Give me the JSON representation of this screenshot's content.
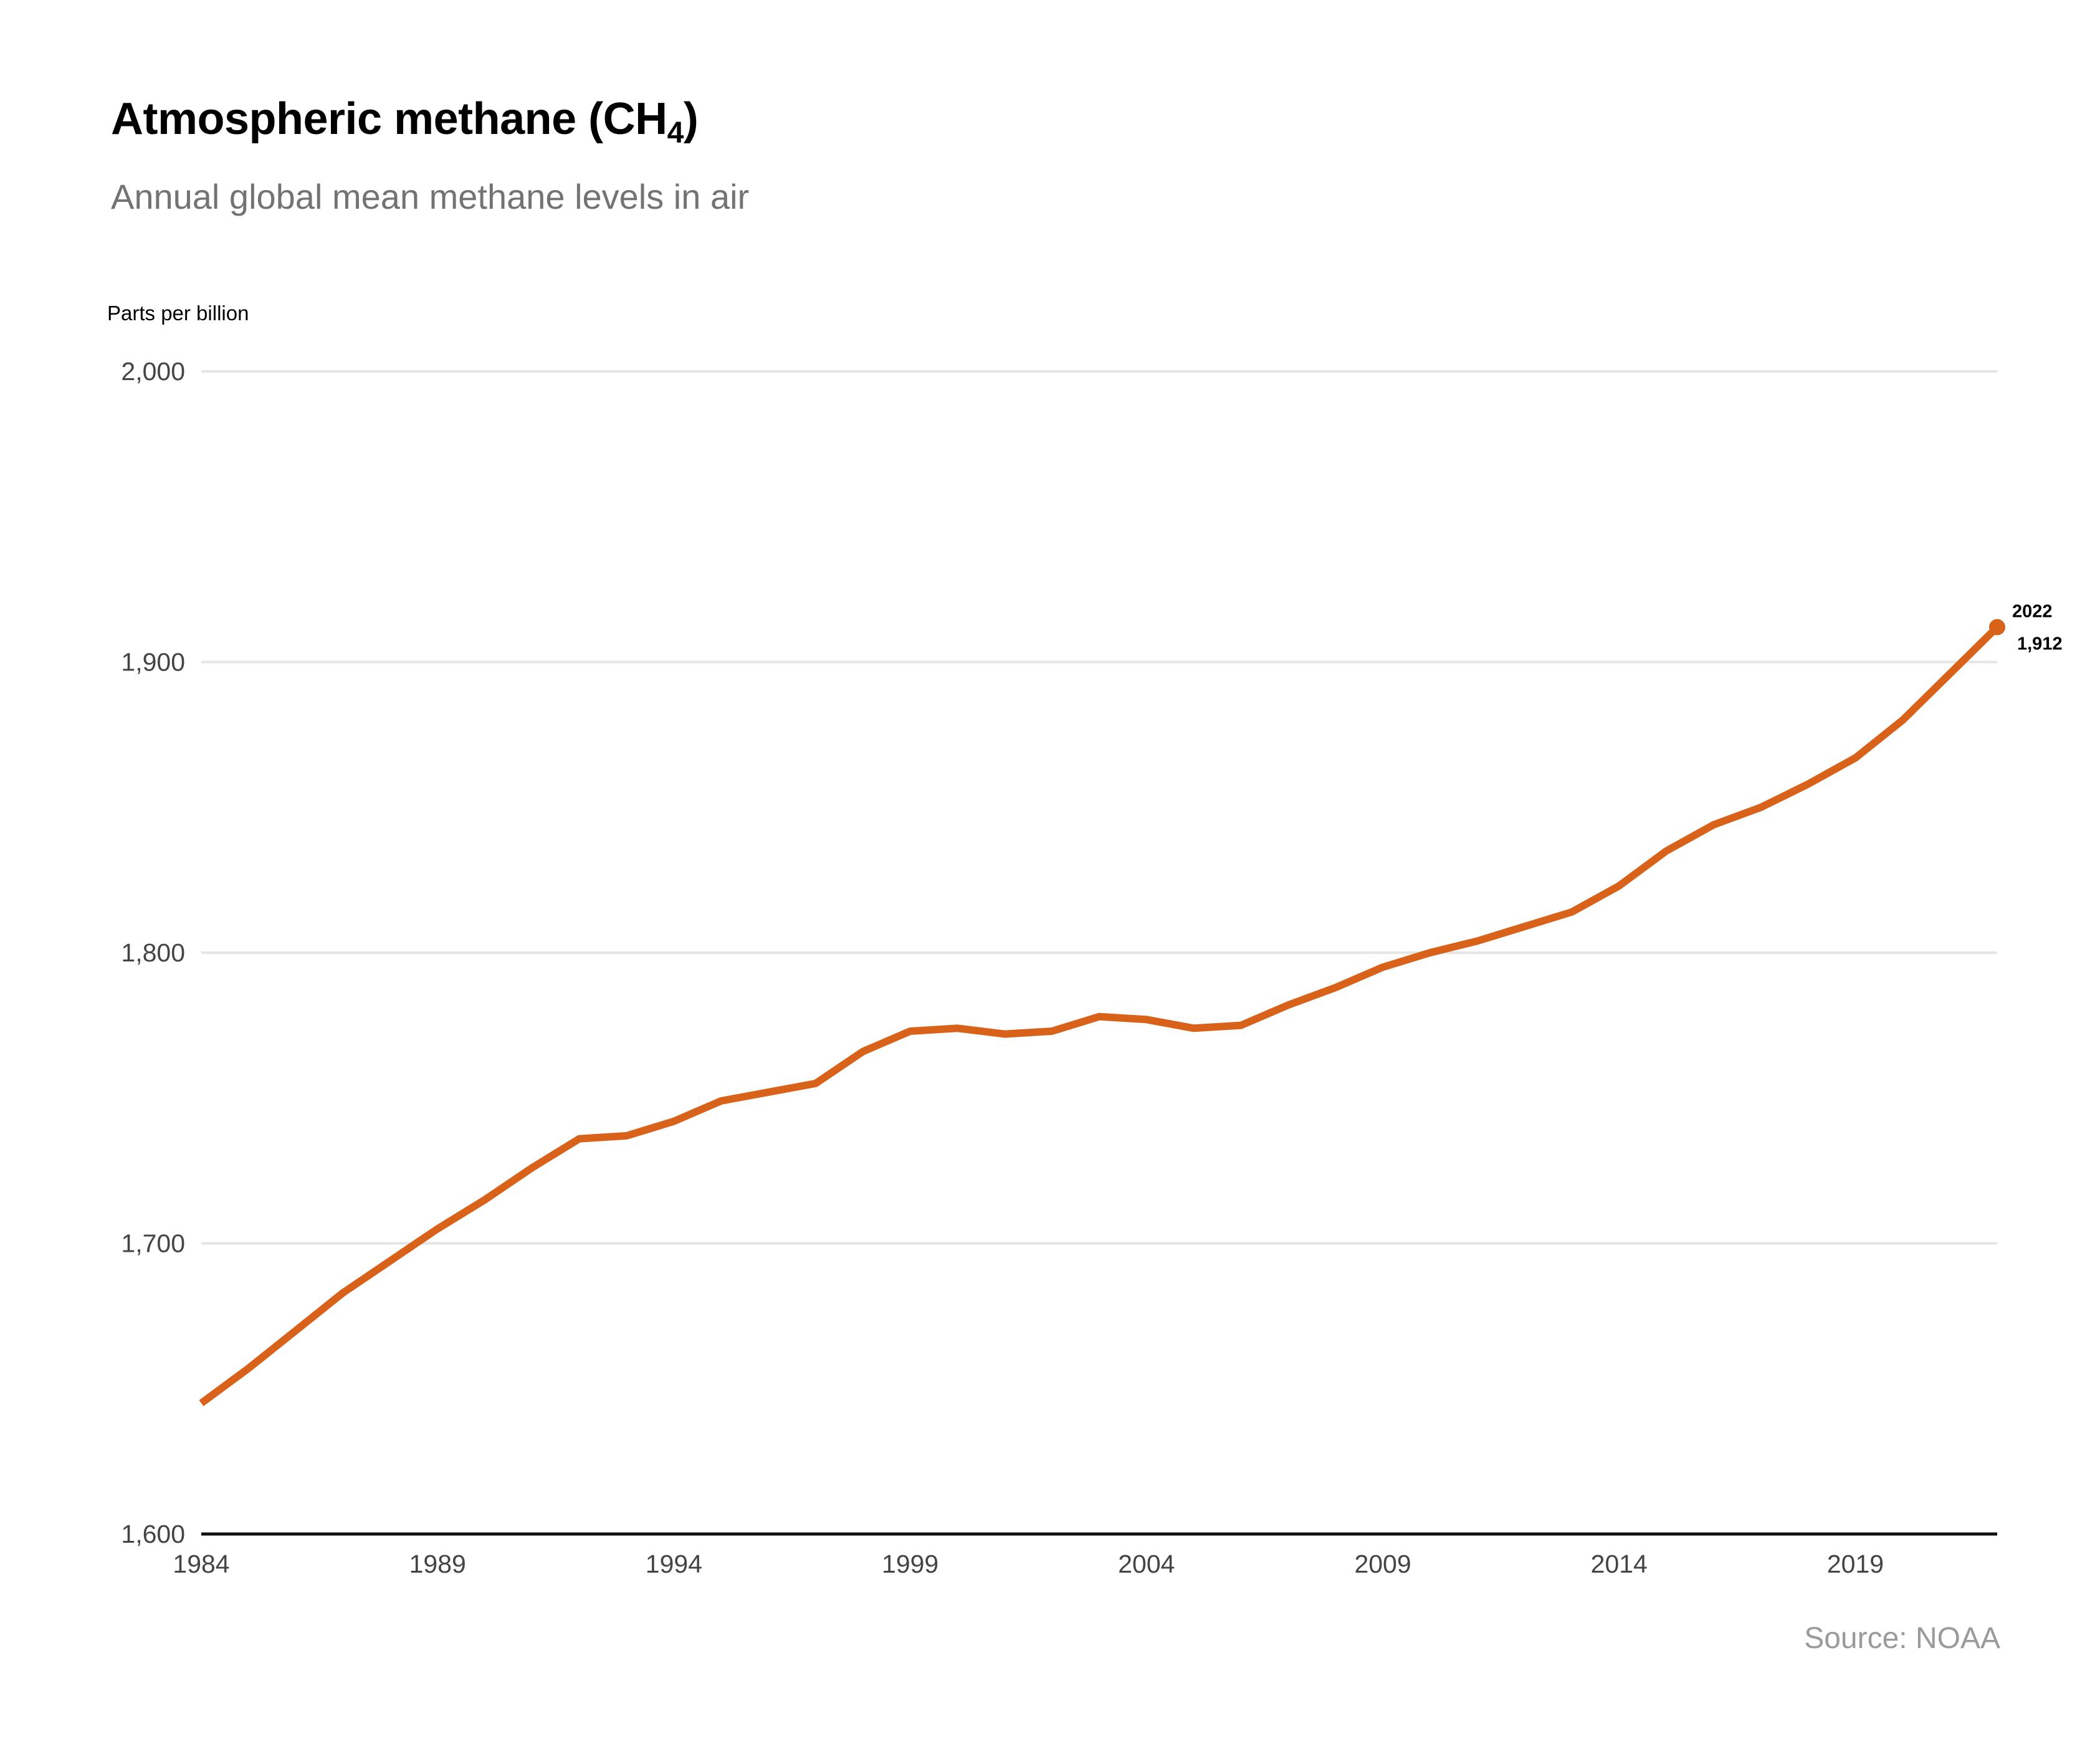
{
  "title": "Atmospheric methane (CH",
  "title_sub": "4",
  "title_close": ")",
  "subtitle": "Annual global mean methane levels in air",
  "source": "Source: NOAA",
  "chart_data": {
    "type": "line",
    "ylabel": "Parts per billion",
    "xlim": [
      1984,
      2022
    ],
    "ylim": [
      1600,
      2000
    ],
    "y_ticks": [
      {
        "value": 1600,
        "label": "1,600"
      },
      {
        "value": 1700,
        "label": "1,700"
      },
      {
        "value": 1800,
        "label": "1,800"
      },
      {
        "value": 1900,
        "label": "1,900"
      },
      {
        "value": 2000,
        "label": "2,000"
      }
    ],
    "x_ticks": [
      {
        "value": 1984,
        "label": "1984"
      },
      {
        "value": 1989,
        "label": "1989"
      },
      {
        "value": 1994,
        "label": "1994"
      },
      {
        "value": 1999,
        "label": "1999"
      },
      {
        "value": 2004,
        "label": "2004"
      },
      {
        "value": 2009,
        "label": "2009"
      },
      {
        "value": 2014,
        "label": "2014"
      },
      {
        "value": 2019,
        "label": "2019"
      }
    ],
    "grid": true,
    "line_color": "#d9621a",
    "series": [
      {
        "x": [
          1984,
          1985,
          1986,
          1987,
          1988,
          1989,
          1990,
          1991,
          1992,
          1993,
          1994,
          1995,
          1996,
          1997,
          1998,
          1999,
          2000,
          2001,
          2002,
          2003,
          2004,
          2005,
          2006,
          2007,
          2008,
          2009,
          2010,
          2011,
          2012,
          2013,
          2014,
          2015,
          2016,
          2017,
          2018,
          2019,
          2020,
          2021,
          2022
        ],
        "values": [
          1645,
          1657,
          1670,
          1683,
          1694,
          1705,
          1715,
          1726,
          1736,
          1737,
          1742,
          1749,
          1752,
          1755,
          1766,
          1773,
          1774,
          1772,
          1773,
          1778,
          1777,
          1774,
          1775,
          1782,
          1788,
          1795,
          1800,
          1804,
          1809,
          1814,
          1823,
          1835,
          1844,
          1850,
          1858,
          1867,
          1880,
          1896,
          1912
        ]
      }
    ],
    "annotations": [
      {
        "x": 2022,
        "y": 1912,
        "label_year": "2022",
        "label_value": "1,912"
      }
    ]
  }
}
